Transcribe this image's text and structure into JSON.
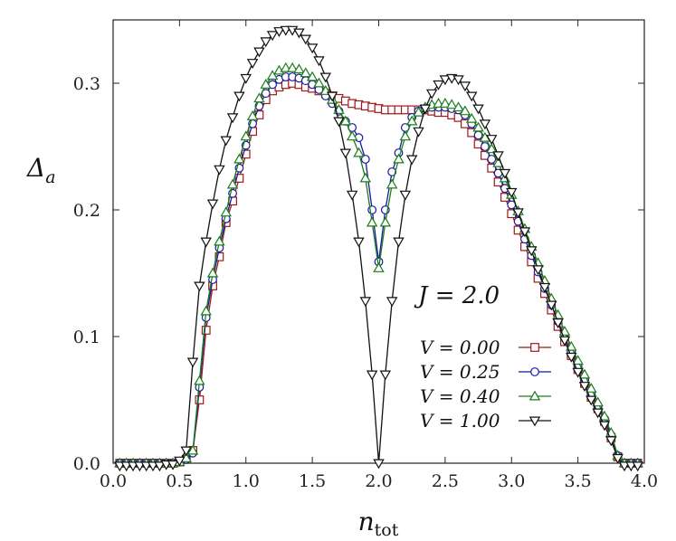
{
  "chart_data": {
    "type": "line",
    "title": "",
    "xlabel": "n",
    "xlabel_sub": "tot",
    "ylabel": "Δ",
    "ylabel_sub": "a",
    "xlim": [
      0.0,
      4.0
    ],
    "ylim": [
      0.0,
      0.35
    ],
    "xticks": [
      "0.0",
      "0.5",
      "1.0",
      "1.5",
      "2.0",
      "2.5",
      "3.0",
      "3.5",
      "4.0"
    ],
    "yticks": [
      "0.0",
      "0.1",
      "0.2",
      "0.3"
    ],
    "annotation": "J = 2.0",
    "legend_position": "lower-right",
    "grid": false,
    "series": [
      {
        "name": "V = 0.00",
        "color": "#a01818",
        "marker": "square",
        "x": [
          0.05,
          0.1,
          0.15,
          0.2,
          0.25,
          0.3,
          0.35,
          0.4,
          0.45,
          0.5,
          0.55,
          0.6,
          0.65,
          0.7,
          0.75,
          0.8,
          0.85,
          0.9,
          0.95,
          1.0,
          1.05,
          1.1,
          1.15,
          1.2,
          1.25,
          1.3,
          1.35,
          1.4,
          1.45,
          1.5,
          1.55,
          1.6,
          1.65,
          1.7,
          1.75,
          1.8,
          1.85,
          1.9,
          1.95,
          2.0,
          2.05,
          2.1,
          2.15,
          2.2,
          2.25,
          2.3,
          2.35,
          2.4,
          2.45,
          2.5,
          2.55,
          2.6,
          2.65,
          2.7,
          2.75,
          2.8,
          2.85,
          2.9,
          2.95,
          3.0,
          3.05,
          3.1,
          3.15,
          3.2,
          3.25,
          3.3,
          3.35,
          3.4,
          3.45,
          3.5,
          3.55,
          3.6,
          3.65,
          3.7,
          3.75,
          3.8,
          3.85,
          3.9,
          3.95
        ],
        "y": [
          0.0,
          0.0,
          0.0,
          0.0,
          0.0,
          0.0,
          0.0,
          0.0,
          0.0,
          0.001,
          0.003,
          0.01,
          0.05,
          0.105,
          0.14,
          0.163,
          0.19,
          0.207,
          0.225,
          0.244,
          0.262,
          0.275,
          0.287,
          0.294,
          0.297,
          0.299,
          0.3,
          0.299,
          0.297,
          0.296,
          0.294,
          0.292,
          0.29,
          0.288,
          0.286,
          0.284,
          0.283,
          0.282,
          0.281,
          0.28,
          0.279,
          0.279,
          0.279,
          0.279,
          0.279,
          0.279,
          0.279,
          0.278,
          0.277,
          0.277,
          0.275,
          0.273,
          0.268,
          0.261,
          0.252,
          0.243,
          0.233,
          0.222,
          0.21,
          0.197,
          0.184,
          0.171,
          0.159,
          0.146,
          0.134,
          0.121,
          0.108,
          0.096,
          0.085,
          0.074,
          0.063,
          0.052,
          0.043,
          0.033,
          0.02,
          0.005,
          0.0,
          0.0,
          0.0
        ]
      },
      {
        "name": "V = 0.25",
        "color": "#1818a0",
        "marker": "circle",
        "x": [
          0.05,
          0.1,
          0.15,
          0.2,
          0.25,
          0.3,
          0.35,
          0.4,
          0.45,
          0.5,
          0.55,
          0.6,
          0.65,
          0.7,
          0.75,
          0.8,
          0.85,
          0.9,
          0.95,
          1.0,
          1.05,
          1.1,
          1.15,
          1.2,
          1.25,
          1.3,
          1.35,
          1.4,
          1.45,
          1.5,
          1.55,
          1.6,
          1.65,
          1.7,
          1.75,
          1.8,
          1.85,
          1.9,
          1.95,
          2.0,
          2.05,
          2.1,
          2.15,
          2.2,
          2.25,
          2.3,
          2.35,
          2.4,
          2.45,
          2.5,
          2.55,
          2.6,
          2.65,
          2.7,
          2.75,
          2.8,
          2.85,
          2.9,
          2.95,
          3.0,
          3.05,
          3.1,
          3.15,
          3.2,
          3.25,
          3.3,
          3.35,
          3.4,
          3.45,
          3.5,
          3.55,
          3.6,
          3.65,
          3.7,
          3.75,
          3.8,
          3.85,
          3.9,
          3.95
        ],
        "y": [
          0.0,
          0.0,
          0.0,
          0.0,
          0.0,
          0.0,
          0.0,
          0.0,
          0.0,
          0.001,
          0.003,
          0.008,
          0.06,
          0.115,
          0.145,
          0.17,
          0.193,
          0.213,
          0.233,
          0.251,
          0.268,
          0.282,
          0.292,
          0.299,
          0.303,
          0.305,
          0.305,
          0.304,
          0.302,
          0.299,
          0.295,
          0.29,
          0.284,
          0.278,
          0.27,
          0.265,
          0.257,
          0.24,
          0.2,
          0.159,
          0.2,
          0.23,
          0.245,
          0.265,
          0.273,
          0.278,
          0.28,
          0.281,
          0.281,
          0.281,
          0.28,
          0.279,
          0.275,
          0.268,
          0.259,
          0.25,
          0.24,
          0.229,
          0.217,
          0.204,
          0.191,
          0.177,
          0.164,
          0.151,
          0.138,
          0.125,
          0.112,
          0.099,
          0.088,
          0.077,
          0.066,
          0.055,
          0.045,
          0.035,
          0.022,
          0.006,
          0.0,
          0.0,
          0.0
        ]
      },
      {
        "name": "V = 0.40",
        "color": "#1a7d1a",
        "marker": "triangle-up",
        "x": [
          0.05,
          0.1,
          0.15,
          0.2,
          0.25,
          0.3,
          0.35,
          0.4,
          0.45,
          0.5,
          0.55,
          0.6,
          0.65,
          0.7,
          0.75,
          0.8,
          0.85,
          0.9,
          0.95,
          1.0,
          1.05,
          1.1,
          1.15,
          1.2,
          1.25,
          1.3,
          1.35,
          1.4,
          1.45,
          1.5,
          1.55,
          1.6,
          1.65,
          1.7,
          1.75,
          1.8,
          1.85,
          1.9,
          1.95,
          2.0,
          2.05,
          2.1,
          2.15,
          2.2,
          2.25,
          2.3,
          2.35,
          2.4,
          2.45,
          2.5,
          2.55,
          2.6,
          2.65,
          2.7,
          2.75,
          2.8,
          2.85,
          2.9,
          2.95,
          3.0,
          3.05,
          3.1,
          3.15,
          3.2,
          3.25,
          3.3,
          3.35,
          3.4,
          3.45,
          3.5,
          3.55,
          3.6,
          3.65,
          3.7,
          3.75,
          3.8,
          3.85,
          3.9,
          3.95
        ],
        "y": [
          0.0,
          0.0,
          0.0,
          0.0,
          0.0,
          0.0,
          0.0,
          0.0,
          0.0,
          0.001,
          0.004,
          0.01,
          0.065,
          0.12,
          0.15,
          0.175,
          0.198,
          0.22,
          0.24,
          0.258,
          0.274,
          0.288,
          0.299,
          0.306,
          0.31,
          0.312,
          0.312,
          0.311,
          0.308,
          0.305,
          0.3,
          0.294,
          0.287,
          0.279,
          0.27,
          0.258,
          0.245,
          0.225,
          0.19,
          0.154,
          0.19,
          0.22,
          0.24,
          0.258,
          0.27,
          0.277,
          0.281,
          0.283,
          0.284,
          0.284,
          0.283,
          0.281,
          0.278,
          0.272,
          0.265,
          0.257,
          0.248,
          0.237,
          0.225,
          0.212,
          0.199,
          0.185,
          0.171,
          0.158,
          0.144,
          0.13,
          0.117,
          0.104,
          0.092,
          0.081,
          0.07,
          0.059,
          0.048,
          0.037,
          0.024,
          0.006,
          0.0,
          0.0,
          0.0
        ]
      },
      {
        "name": "V = 1.00",
        "color": "#111111",
        "marker": "triangle-down",
        "x": [
          0.05,
          0.1,
          0.15,
          0.2,
          0.25,
          0.3,
          0.35,
          0.4,
          0.45,
          0.5,
          0.55,
          0.6,
          0.65,
          0.7,
          0.75,
          0.8,
          0.85,
          0.9,
          0.95,
          1.0,
          1.05,
          1.1,
          1.15,
          1.2,
          1.25,
          1.3,
          1.35,
          1.4,
          1.45,
          1.5,
          1.55,
          1.6,
          1.65,
          1.7,
          1.75,
          1.8,
          1.85,
          1.9,
          1.95,
          2.0,
          2.05,
          2.1,
          2.15,
          2.2,
          2.25,
          2.3,
          2.35,
          2.4,
          2.45,
          2.5,
          2.55,
          2.6,
          2.65,
          2.7,
          2.75,
          2.8,
          2.85,
          2.9,
          2.95,
          3.0,
          3.05,
          3.1,
          3.15,
          3.2,
          3.25,
          3.3,
          3.35,
          3.4,
          3.45,
          3.5,
          3.55,
          3.6,
          3.65,
          3.7,
          3.75,
          3.8,
          3.85,
          3.9,
          3.95
        ],
        "y": [
          -0.002,
          -0.002,
          -0.002,
          -0.002,
          -0.002,
          -0.002,
          -0.002,
          -0.001,
          -0.001,
          0.002,
          0.01,
          0.08,
          0.14,
          0.175,
          0.205,
          0.232,
          0.255,
          0.273,
          0.29,
          0.304,
          0.316,
          0.325,
          0.333,
          0.338,
          0.341,
          0.342,
          0.342,
          0.34,
          0.335,
          0.328,
          0.318,
          0.305,
          0.29,
          0.27,
          0.245,
          0.212,
          0.175,
          0.128,
          0.07,
          0.0,
          0.07,
          0.128,
          0.175,
          0.212,
          0.24,
          0.262,
          0.28,
          0.292,
          0.299,
          0.303,
          0.304,
          0.303,
          0.298,
          0.29,
          0.28,
          0.268,
          0.256,
          0.243,
          0.229,
          0.214,
          0.198,
          0.183,
          0.168,
          0.153,
          0.139,
          0.125,
          0.111,
          0.097,
          0.084,
          0.072,
          0.061,
          0.05,
          0.04,
          0.03,
          0.018,
          0.004,
          -0.002,
          -0.002,
          -0.002
        ]
      }
    ]
  }
}
